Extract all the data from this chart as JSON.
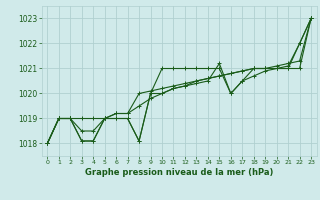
{
  "title": "Graphe pression niveau de la mer (hPa)",
  "background_color": "#d0eaea",
  "grid_color": "#b0d0d0",
  "line_color": "#1a5c1a",
  "xlim": [
    -0.5,
    23.5
  ],
  "ylim": [
    1017.5,
    1023.5
  ],
  "yticks": [
    1018,
    1019,
    1020,
    1021,
    1022,
    1023
  ],
  "xticks": [
    0,
    1,
    2,
    3,
    4,
    5,
    6,
    7,
    8,
    9,
    10,
    11,
    12,
    13,
    14,
    15,
    16,
    17,
    18,
    19,
    20,
    21,
    22,
    23
  ],
  "series": [
    [
      1018.0,
      1019.0,
      1019.0,
      1018.1,
      1018.1,
      1019.0,
      1019.0,
      1019.0,
      1018.1,
      1020.0,
      1021.0,
      1021.0,
      1021.0,
      1021.0,
      1021.0,
      1021.0,
      1020.0,
      1020.5,
      1021.0,
      1021.0,
      1021.0,
      1021.0,
      1022.0,
      1023.0
    ],
    [
      1018.0,
      1019.0,
      1019.0,
      1018.1,
      1018.1,
      1019.0,
      1019.0,
      1019.0,
      1018.1,
      1020.0,
      1020.0,
      1020.2,
      1020.3,
      1020.4,
      1020.5,
      1021.2,
      1020.0,
      1020.5,
      1020.7,
      1020.9,
      1021.0,
      1021.1,
      1022.0,
      1023.0
    ],
    [
      1018.0,
      1019.0,
      1019.0,
      1018.5,
      1018.5,
      1019.0,
      1019.2,
      1019.2,
      1020.0,
      1020.1,
      1020.2,
      1020.3,
      1020.4,
      1020.5,
      1020.6,
      1020.7,
      1020.8,
      1020.9,
      1021.0,
      1021.0,
      1021.0,
      1021.0,
      1021.0,
      1023.0
    ],
    [
      1018.0,
      1019.0,
      1019.0,
      1019.0,
      1019.0,
      1019.0,
      1019.2,
      1019.2,
      1019.5,
      1019.8,
      1020.0,
      1020.2,
      1020.3,
      1020.5,
      1020.6,
      1020.7,
      1020.8,
      1020.9,
      1021.0,
      1021.0,
      1021.1,
      1021.2,
      1021.3,
      1023.0
    ]
  ],
  "figwidth": 3.2,
  "figheight": 2.0,
  "dpi": 100
}
